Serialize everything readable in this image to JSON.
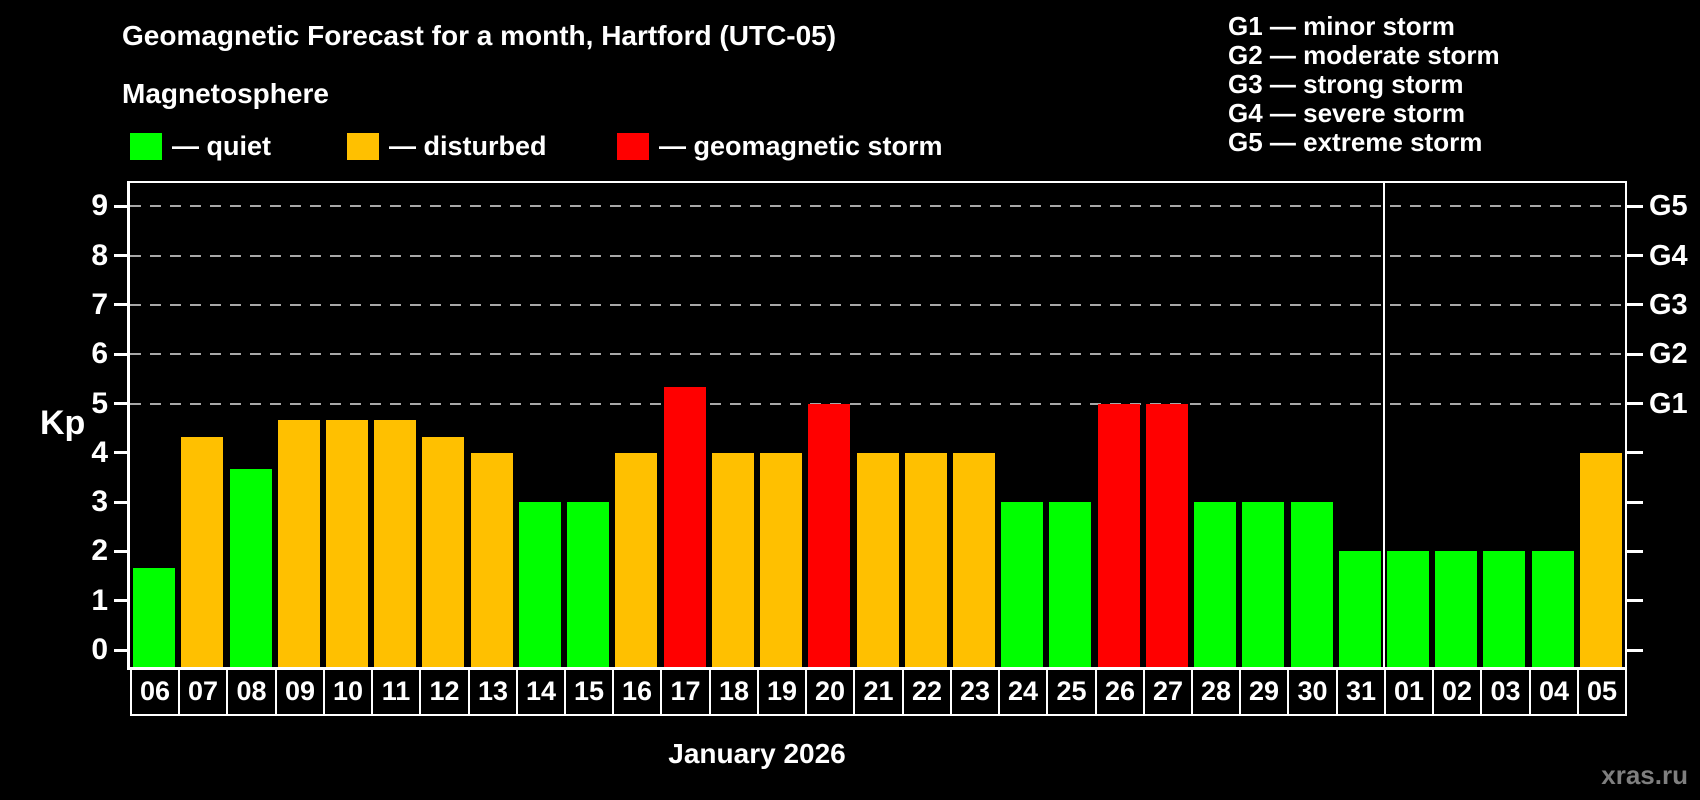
{
  "title": "Geomagnetic Forecast for a month, Hartford (UTC-05)",
  "subtitle": "Magnetosphere",
  "legend": {
    "items": [
      {
        "key": "quiet",
        "label": "— quiet",
        "color": "#00ff00"
      },
      {
        "key": "disturbed",
        "label": "— disturbed",
        "color": "#ffc000"
      },
      {
        "key": "storm",
        "label": "— geomagnetic storm",
        "color": "#ff0000"
      }
    ]
  },
  "storm_scale_legend": [
    "G1 — minor storm",
    "G2 — moderate storm",
    "G3 — strong storm",
    "G4 — severe storm",
    "G5 — extreme storm"
  ],
  "watermark": "xras.ru",
  "chart_data": {
    "type": "bar",
    "title": "Geomagnetic Forecast for a month, Hartford (UTC-05)",
    "ylabel": "Kp",
    "xlabel": "January 2026",
    "ylim": [
      0,
      9.5
    ],
    "yticks": [
      0,
      1,
      2,
      3,
      4,
      5,
      6,
      7,
      8,
      9
    ],
    "gridlines_at": [
      5,
      6,
      7,
      8,
      9
    ],
    "grid": "dashed horizontal at storm levels",
    "right_axis_labels": [
      {
        "kp": 5,
        "label": "G1"
      },
      {
        "kp": 6,
        "label": "G2"
      },
      {
        "kp": 7,
        "label": "G3"
      },
      {
        "kp": 8,
        "label": "G4"
      },
      {
        "kp": 9,
        "label": "G5"
      }
    ],
    "categories": [
      "06",
      "07",
      "08",
      "09",
      "10",
      "11",
      "12",
      "13",
      "14",
      "15",
      "16",
      "17",
      "18",
      "19",
      "20",
      "21",
      "22",
      "23",
      "24",
      "25",
      "26",
      "27",
      "28",
      "29",
      "30",
      "31",
      "01",
      "02",
      "03",
      "04",
      "05"
    ],
    "values": [
      1.67,
      4.33,
      3.67,
      4.67,
      4.67,
      4.67,
      4.33,
      4.0,
      3.0,
      3.0,
      4.0,
      5.33,
      4.0,
      4.0,
      5.0,
      4.0,
      4.0,
      4.0,
      3.0,
      3.0,
      5.0,
      5.0,
      3.0,
      3.0,
      3.0,
      2.0,
      2.0,
      2.0,
      2.0,
      2.0,
      4.0
    ],
    "statuses": [
      "quiet",
      "disturbed",
      "quiet",
      "disturbed",
      "disturbed",
      "disturbed",
      "disturbed",
      "disturbed",
      "quiet",
      "quiet",
      "disturbed",
      "storm",
      "disturbed",
      "disturbed",
      "storm",
      "disturbed",
      "disturbed",
      "disturbed",
      "quiet",
      "quiet",
      "storm",
      "storm",
      "quiet",
      "quiet",
      "quiet",
      "quiet",
      "quiet",
      "quiet",
      "quiet",
      "quiet",
      "disturbed"
    ],
    "colors": {
      "quiet": "#00ff00",
      "disturbed": "#ffc000",
      "storm": "#ff0000"
    },
    "month_separator_after_index": 25
  }
}
